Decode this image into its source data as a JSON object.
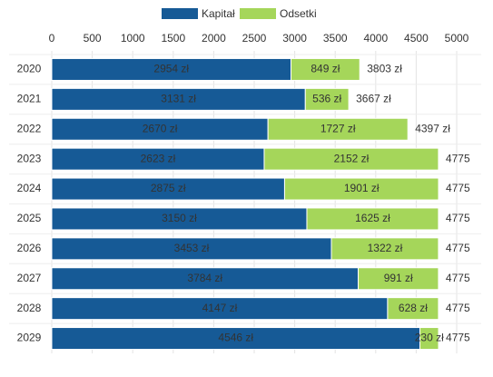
{
  "chart_data": {
    "type": "stacked-bar-horizontal",
    "categories": [
      "2020",
      "2021",
      "2022",
      "2023",
      "2024",
      "2025",
      "2026",
      "2027",
      "2028",
      "2029"
    ],
    "series": [
      {
        "name": "Kapitał",
        "color": "#165a96",
        "values": [
          2954,
          3131,
          2670,
          2623,
          2875,
          3150,
          3453,
          3784,
          4147,
          4546
        ],
        "value_labels": [
          "2954 zł",
          "3131 zł",
          "2670 zł",
          "2623 zł",
          "2875 zł",
          "3150 zł",
          "3453 zł",
          "3784 zł",
          "4147 zł",
          "4546 zł"
        ]
      },
      {
        "name": "Odsetki",
        "color": "#a5d65a",
        "values": [
          849,
          536,
          1727,
          2152,
          1901,
          1625,
          1322,
          991,
          628,
          230
        ],
        "value_labels": [
          "849 zł",
          "536 zł",
          "1727 zł",
          "2152 zł",
          "1901 zł",
          "1625 zł",
          "1322 zł",
          "991 zł",
          "628 zł",
          "230 zł"
        ]
      }
    ],
    "totals": [
      3803,
      3667,
      4397,
      4775,
      4775,
      4775,
      4775,
      4775,
      4775,
      4775
    ],
    "total_labels": [
      "3803 zł",
      "3667 zł",
      "4397 zł",
      "4775",
      "4775",
      "4775",
      "4775",
      "4775",
      "4775",
      "4775"
    ],
    "xlim": [
      0,
      5000
    ],
    "xticks": [
      0,
      500,
      1000,
      1500,
      2000,
      2500,
      3000,
      3500,
      4000,
      4500,
      5000
    ],
    "grid": true
  }
}
